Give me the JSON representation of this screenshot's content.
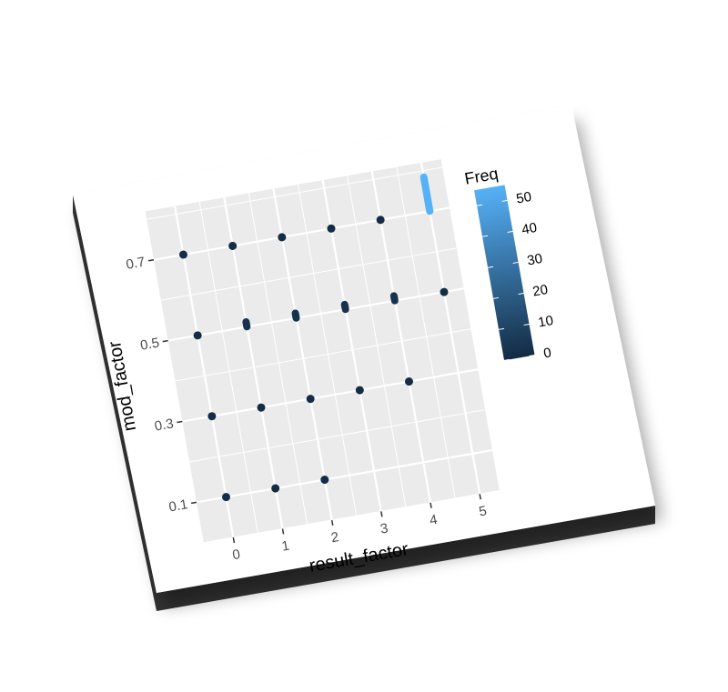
{
  "chart_data": {
    "type": "scatter",
    "title": "",
    "xlabel": "result_factor",
    "ylabel": "mod_factor",
    "x_ticks": [
      0,
      1,
      2,
      3,
      4,
      5
    ],
    "y_ticks": [
      0.1,
      0.3,
      0.5,
      0.7
    ],
    "xlim": [
      -0.6,
      5.4
    ],
    "ylim": [
      0.0,
      0.82
    ],
    "grid": true,
    "legend": {
      "title": "Freq",
      "placement": "right",
      "ticks": [
        0,
        10,
        20,
        30,
        40,
        50
      ],
      "min": 0,
      "max": 55,
      "color_low": "#132B43",
      "color_high": "#56B1F7"
    },
    "colors": {
      "panel": "#EBEBEB",
      "grid": "#FFFFFF",
      "card": "#FFFFFF",
      "card_edge": "#333333"
    },
    "points": [
      {
        "x": 0,
        "y": 0.1,
        "freq": 1
      },
      {
        "x": 1,
        "y": 0.1,
        "freq": 1
      },
      {
        "x": 2,
        "y": 0.1,
        "freq": 1
      },
      {
        "x": 0,
        "y": 0.3,
        "freq": 1
      },
      {
        "x": 1,
        "y": 0.3,
        "freq": 1
      },
      {
        "x": 2,
        "y": 0.3,
        "freq": 1
      },
      {
        "x": 3,
        "y": 0.3,
        "freq": 1
      },
      {
        "x": 4,
        "y": 0.3,
        "freq": 1
      },
      {
        "x": 0,
        "y": 0.5,
        "freq": 1
      },
      {
        "x": 1,
        "y": 0.5,
        "freq": 3
      },
      {
        "x": 2,
        "y": 0.5,
        "freq": 3
      },
      {
        "x": 3,
        "y": 0.5,
        "freq": 3
      },
      {
        "x": 4,
        "y": 0.5,
        "freq": 3
      },
      {
        "x": 5,
        "y": 0.5,
        "freq": 1
      },
      {
        "x": 0,
        "y": 0.7,
        "freq": 1
      },
      {
        "x": 1,
        "y": 0.7,
        "freq": 1
      },
      {
        "x": 2,
        "y": 0.7,
        "freq": 1
      },
      {
        "x": 3,
        "y": 0.7,
        "freq": 1
      },
      {
        "x": 4,
        "y": 0.7,
        "freq": 1
      },
      {
        "x": 5,
        "y": 0.7,
        "freq": 55
      }
    ]
  }
}
